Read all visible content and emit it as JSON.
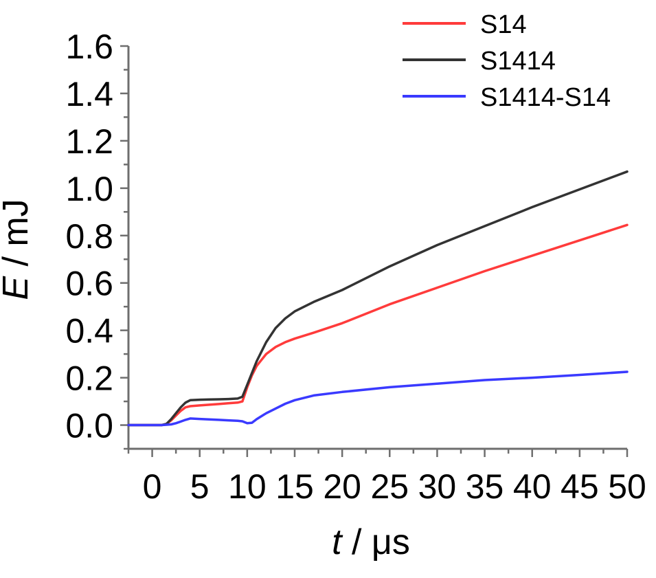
{
  "chart_data": {
    "type": "line",
    "title": "",
    "xlabel": {
      "var": "t",
      "unit": " / μs"
    },
    "ylabel": {
      "var": "E",
      "unit": " / mJ"
    },
    "xlim": [
      -2.5,
      50
    ],
    "ylim": [
      -0.1,
      1.6
    ],
    "xticks": [
      0,
      5,
      10,
      15,
      20,
      25,
      30,
      35,
      40,
      45,
      50
    ],
    "yticks": [
      0.0,
      0.2,
      0.4,
      0.6,
      0.8,
      1.0,
      1.2,
      1.4,
      1.6
    ],
    "ytick_labels": [
      "0.0",
      "0.2",
      "0.4",
      "0.6",
      "0.8",
      "1.0",
      "1.2",
      "1.4",
      "1.6"
    ],
    "grid": false,
    "legend_position": "top-right",
    "series": [
      {
        "name": "S14",
        "color": "#ff3b3b",
        "points": [
          [
            -2.5,
            0
          ],
          [
            1,
            0
          ],
          [
            1.5,
            0.005
          ],
          [
            2,
            0.02
          ],
          [
            2.5,
            0.04
          ],
          [
            3,
            0.06
          ],
          [
            3.5,
            0.075
          ],
          [
            4,
            0.08
          ],
          [
            5,
            0.083
          ],
          [
            6,
            0.086
          ],
          [
            7,
            0.089
          ],
          [
            8,
            0.092
          ],
          [
            9,
            0.095
          ],
          [
            9.5,
            0.1
          ],
          [
            10,
            0.16
          ],
          [
            10.5,
            0.21
          ],
          [
            11,
            0.25
          ],
          [
            12,
            0.3
          ],
          [
            13,
            0.33
          ],
          [
            14,
            0.35
          ],
          [
            15,
            0.365
          ],
          [
            17,
            0.39
          ],
          [
            20,
            0.43
          ],
          [
            25,
            0.51
          ],
          [
            30,
            0.58
          ],
          [
            35,
            0.65
          ],
          [
            40,
            0.715
          ],
          [
            45,
            0.78
          ],
          [
            50,
            0.845
          ]
        ]
      },
      {
        "name": "S1414",
        "color": "#333333",
        "points": [
          [
            -2.5,
            0
          ],
          [
            1,
            0
          ],
          [
            1.5,
            0.005
          ],
          [
            2,
            0.025
          ],
          [
            2.5,
            0.05
          ],
          [
            3,
            0.075
          ],
          [
            3.5,
            0.095
          ],
          [
            4,
            0.105
          ],
          [
            5,
            0.107
          ],
          [
            6,
            0.108
          ],
          [
            7,
            0.109
          ],
          [
            8,
            0.11
          ],
          [
            9,
            0.112
          ],
          [
            9.5,
            0.12
          ],
          [
            10,
            0.17
          ],
          [
            10.5,
            0.22
          ],
          [
            11,
            0.27
          ],
          [
            12,
            0.35
          ],
          [
            13,
            0.41
          ],
          [
            14,
            0.45
          ],
          [
            15,
            0.48
          ],
          [
            17,
            0.52
          ],
          [
            20,
            0.57
          ],
          [
            25,
            0.67
          ],
          [
            30,
            0.76
          ],
          [
            35,
            0.84
          ],
          [
            40,
            0.92
          ],
          [
            45,
            0.995
          ],
          [
            50,
            1.07
          ]
        ]
      },
      {
        "name": "S1414-S14",
        "color": "#3a3aff",
        "points": [
          [
            -2.5,
            0
          ],
          [
            1,
            0
          ],
          [
            2,
            0.003
          ],
          [
            2.5,
            0.008
          ],
          [
            3,
            0.015
          ],
          [
            3.5,
            0.022
          ],
          [
            4,
            0.028
          ],
          [
            5,
            0.026
          ],
          [
            6,
            0.024
          ],
          [
            7,
            0.022
          ],
          [
            8,
            0.02
          ],
          [
            9,
            0.018
          ],
          [
            9.5,
            0.016
          ],
          [
            10,
            0.008
          ],
          [
            10.5,
            0.01
          ],
          [
            11,
            0.025
          ],
          [
            12,
            0.05
          ],
          [
            13,
            0.07
          ],
          [
            14,
            0.09
          ],
          [
            15,
            0.105
          ],
          [
            17,
            0.125
          ],
          [
            20,
            0.14
          ],
          [
            25,
            0.16
          ],
          [
            30,
            0.175
          ],
          [
            35,
            0.19
          ],
          [
            40,
            0.2
          ],
          [
            45,
            0.212
          ],
          [
            50,
            0.225
          ]
        ]
      }
    ]
  }
}
